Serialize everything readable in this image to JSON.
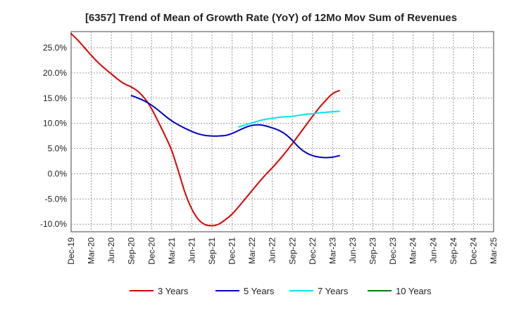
{
  "chart_data": {
    "type": "line",
    "title": "[6357]  Trend of Mean of Growth Rate (YoY) of 12Mo Mov Sum of Revenues",
    "xlabel": "",
    "ylabel": "",
    "x_ticks": [
      "Dec-19",
      "Mar-20",
      "Jun-20",
      "Sep-20",
      "Dec-20",
      "Mar-21",
      "Jun-21",
      "Sep-21",
      "Dec-21",
      "Mar-22",
      "Jun-22",
      "Sep-22",
      "Dec-22",
      "Mar-23",
      "Jun-23",
      "Sep-23",
      "Dec-23",
      "Mar-24",
      "Jun-24",
      "Sep-24",
      "Dec-24",
      "Mar-25"
    ],
    "y_ticks": [
      25.0,
      20.0,
      15.0,
      10.0,
      5.0,
      0.0,
      -5.0,
      -10.0
    ],
    "y_tick_labels": [
      "25.0%",
      "20.0%",
      "15.0%",
      "10.0%",
      "5.0%",
      "0.0%",
      "-5.0%",
      "-10.0%"
    ],
    "ylim": [
      -11.5,
      28.2
    ],
    "grid": true,
    "legend_position": "bottom",
    "series": [
      {
        "name": "3 Years",
        "color": "#dd0000",
        "values": [
          [
            0,
            27.8
          ],
          [
            1,
            26.5
          ],
          [
            2,
            25.0
          ],
          [
            3,
            23.5
          ],
          [
            4,
            22.1
          ],
          [
            5,
            20.9
          ],
          [
            6,
            19.8
          ],
          [
            7,
            18.7
          ],
          [
            8,
            17.8
          ],
          [
            9,
            17.2
          ],
          [
            10,
            16.3
          ],
          [
            11,
            14.9
          ],
          [
            12,
            12.9
          ],
          [
            13,
            10.3
          ],
          [
            14,
            7.6
          ],
          [
            15,
            4.6
          ],
          [
            16,
            0.5
          ],
          [
            17,
            -3.8
          ],
          [
            18,
            -7.0
          ],
          [
            19,
            -9.1
          ],
          [
            20,
            -10.1
          ],
          [
            21,
            -10.3
          ],
          [
            22,
            -10.0
          ],
          [
            23,
            -9.1
          ],
          [
            24,
            -8.0
          ],
          [
            25,
            -6.5
          ],
          [
            26,
            -4.9
          ],
          [
            27,
            -3.3
          ],
          [
            28,
            -1.7
          ],
          [
            29,
            -0.2
          ],
          [
            30,
            1.2
          ],
          [
            31,
            2.7
          ],
          [
            32,
            4.3
          ],
          [
            33,
            6.0
          ],
          [
            34,
            7.8
          ],
          [
            35,
            9.6
          ],
          [
            36,
            11.4
          ],
          [
            37,
            13.1
          ],
          [
            38,
            14.6
          ],
          [
            39,
            15.9
          ],
          [
            40,
            16.5
          ]
        ]
      },
      {
        "name": "5 Years",
        "color": "#0000cc",
        "values": [
          [
            9,
            15.5
          ],
          [
            10,
            15.0
          ],
          [
            11,
            14.4
          ],
          [
            12,
            13.6
          ],
          [
            13,
            12.6
          ],
          [
            14,
            11.5
          ],
          [
            15,
            10.5
          ],
          [
            16,
            9.7
          ],
          [
            17,
            9.0
          ],
          [
            18,
            8.4
          ],
          [
            19,
            7.9
          ],
          [
            20,
            7.6
          ],
          [
            21,
            7.5
          ],
          [
            22,
            7.5
          ],
          [
            23,
            7.6
          ],
          [
            24,
            8.0
          ],
          [
            25,
            8.6
          ],
          [
            26,
            9.2
          ],
          [
            27,
            9.6
          ],
          [
            28,
            9.7
          ],
          [
            29,
            9.5
          ],
          [
            30,
            9.1
          ],
          [
            31,
            8.6
          ],
          [
            32,
            7.8
          ],
          [
            33,
            6.6
          ],
          [
            34,
            5.2
          ],
          [
            35,
            4.2
          ],
          [
            36,
            3.6
          ],
          [
            37,
            3.3
          ],
          [
            38,
            3.2
          ],
          [
            39,
            3.3
          ],
          [
            40,
            3.6
          ]
        ]
      },
      {
        "name": "7 Years",
        "color": "#00e5ee",
        "values": [
          [
            25,
            9.3
          ],
          [
            26,
            9.7
          ],
          [
            27,
            10.1
          ],
          [
            28,
            10.5
          ],
          [
            29,
            10.8
          ],
          [
            30,
            11.0
          ],
          [
            31,
            11.2
          ],
          [
            32,
            11.3
          ],
          [
            33,
            11.4
          ],
          [
            34,
            11.6
          ],
          [
            35,
            11.8
          ],
          [
            36,
            11.9
          ],
          [
            37,
            12.1
          ],
          [
            38,
            12.2
          ],
          [
            39,
            12.3
          ],
          [
            40,
            12.4
          ]
        ]
      },
      {
        "name": "10 Years",
        "color": "#008000",
        "values": []
      }
    ]
  }
}
